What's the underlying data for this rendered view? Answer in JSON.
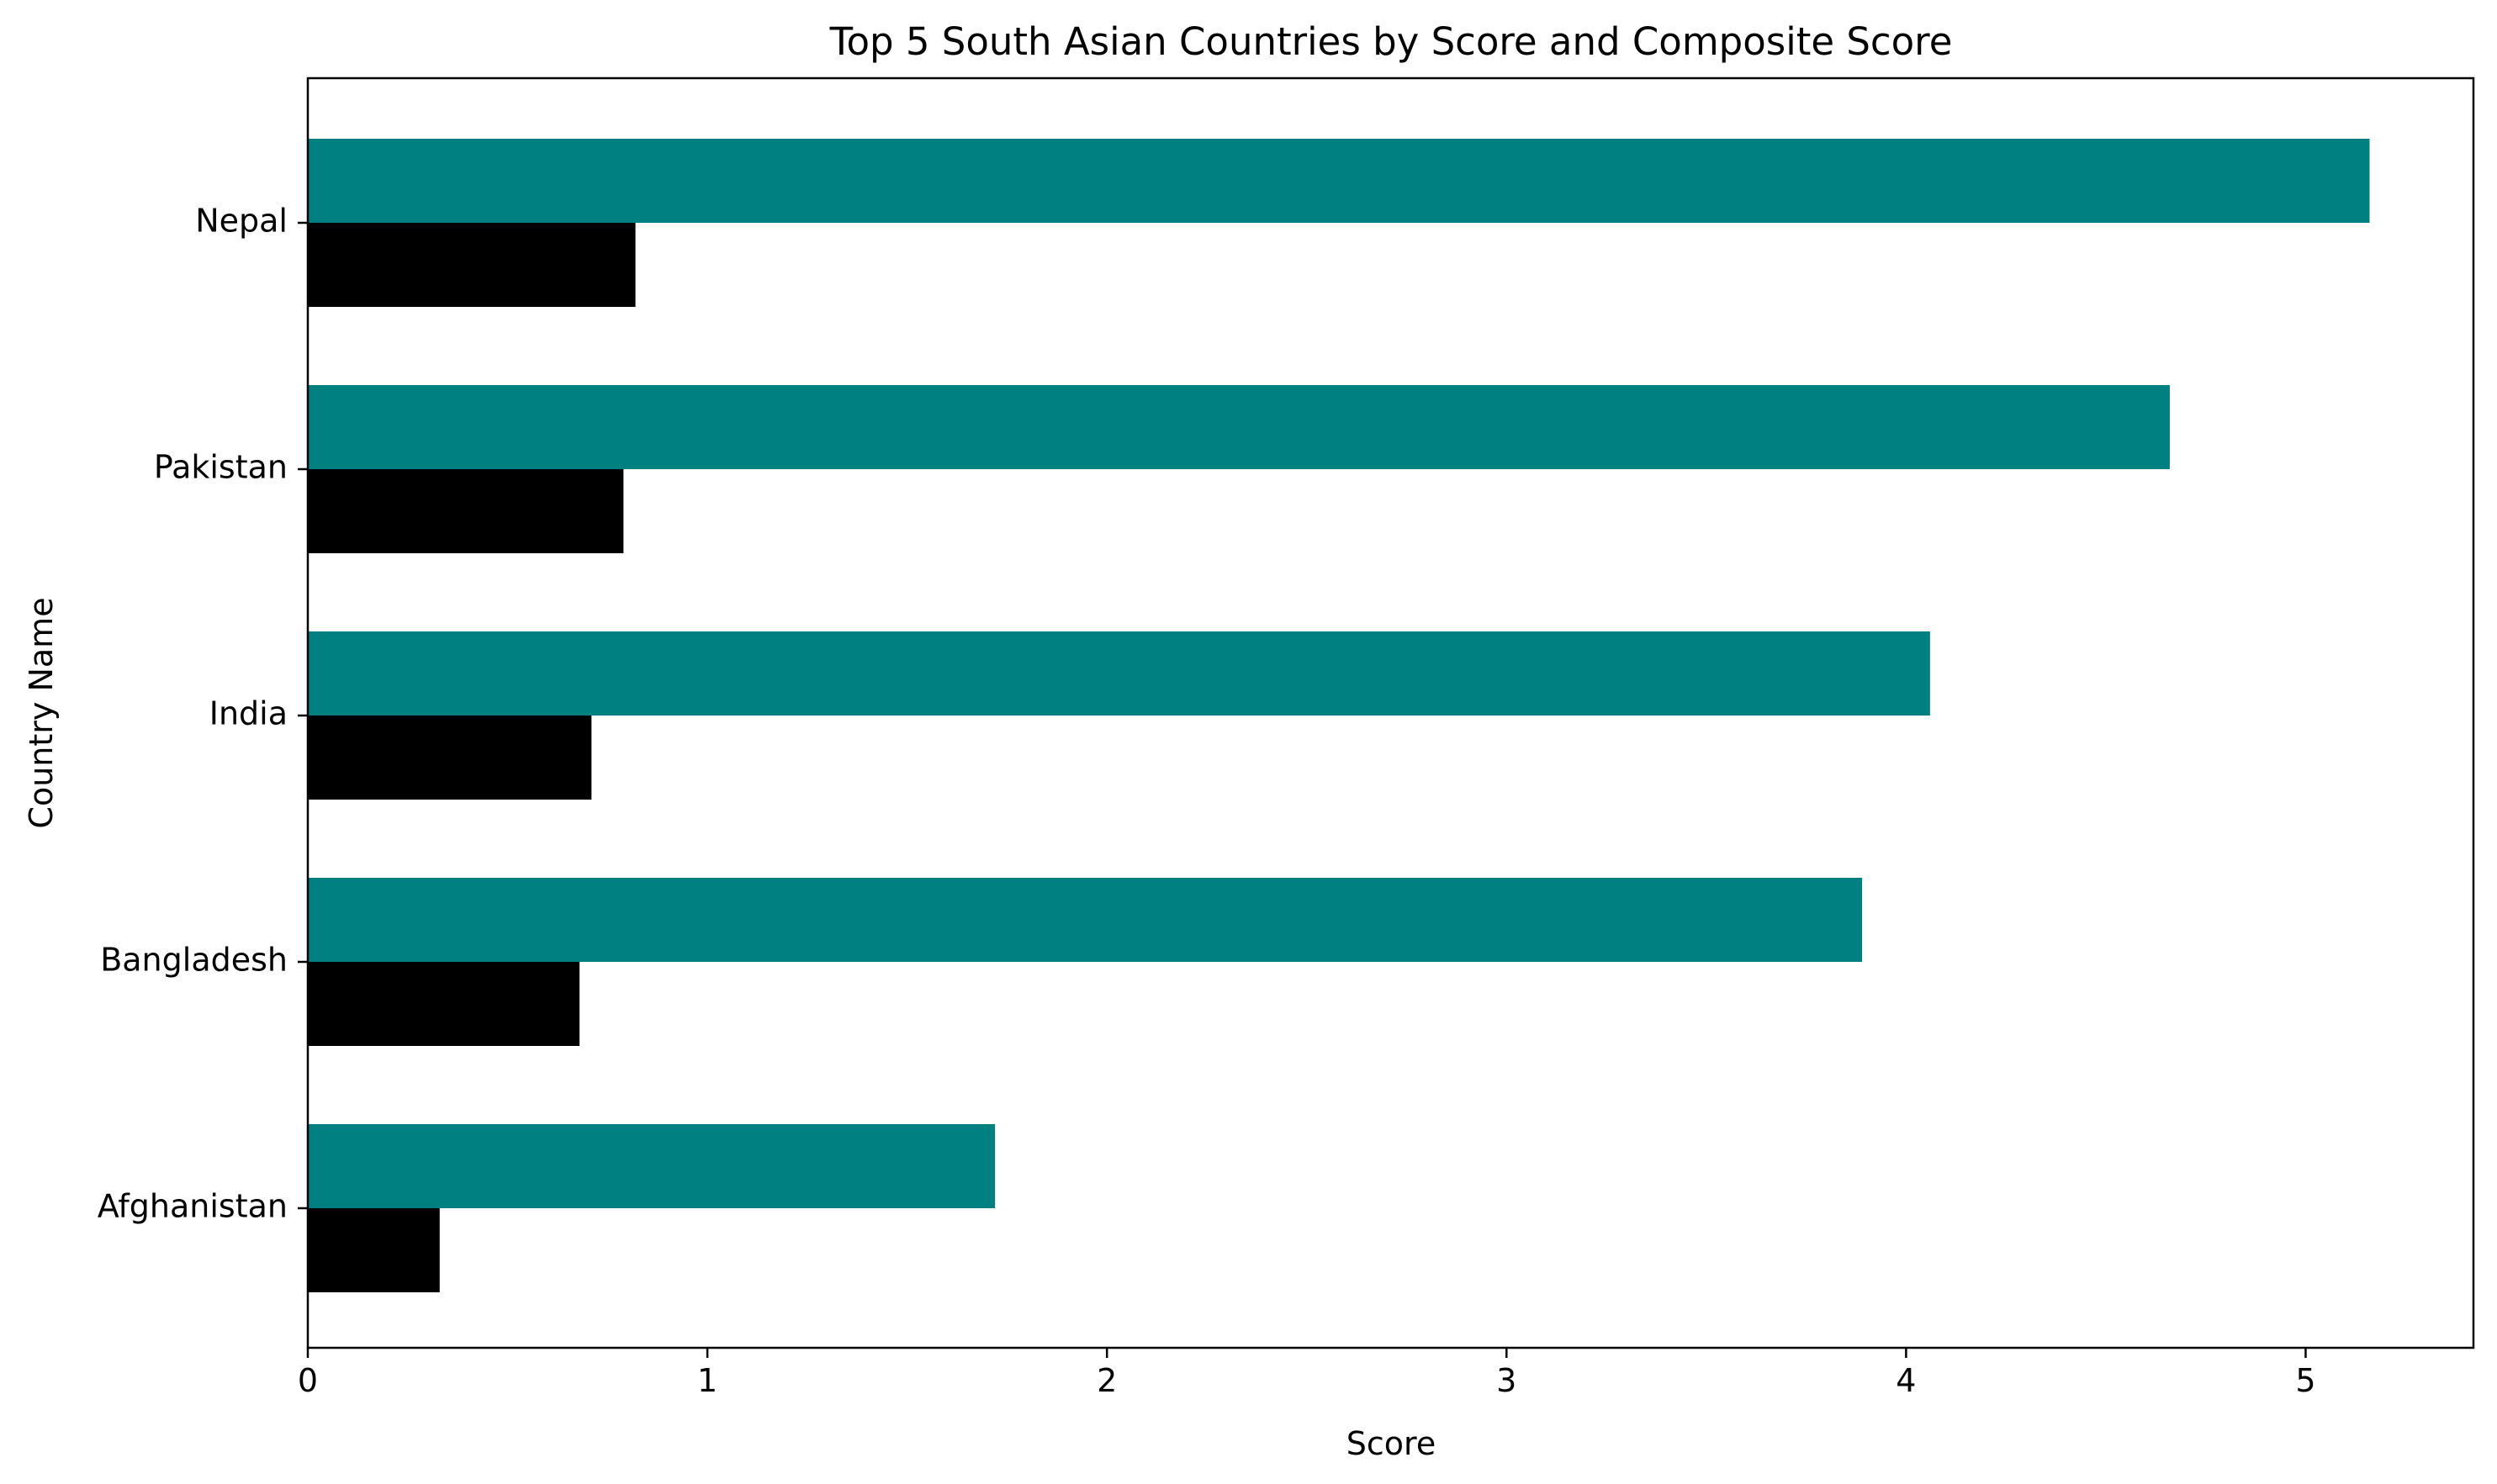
{
  "chart_data": {
    "type": "bar",
    "orientation": "horizontal",
    "title": "Top 5 South Asian Countries by Score and Composite Score",
    "xlabel": "Score",
    "ylabel": "Country Name",
    "categories": [
      "Nepal",
      "Pakistan",
      "India",
      "Bangladesh",
      "Afghanistan"
    ],
    "series": [
      {
        "values": [
          5.16,
          4.66,
          4.06,
          3.89,
          1.72
        ],
        "color": "#008080"
      },
      {
        "values": [
          0.82,
          0.79,
          0.71,
          0.68,
          0.33
        ],
        "color": "#000000"
      }
    ],
    "xlim": [
      0,
      5.42
    ],
    "xticks": [
      0,
      1,
      2,
      3,
      4,
      5
    ],
    "grid": false,
    "legend": "none"
  }
}
